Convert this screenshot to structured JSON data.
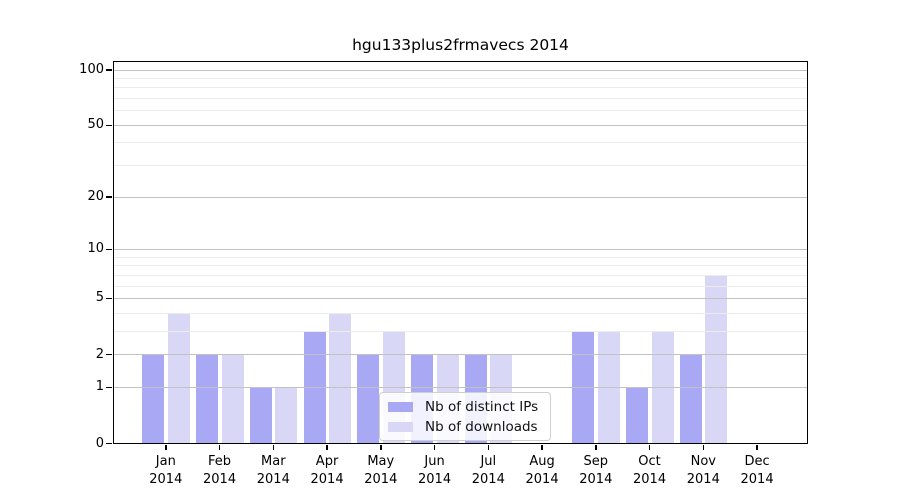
{
  "title": "hgu133plus2frmavecs 2014",
  "chart_data": {
    "type": "bar",
    "title": "hgu133plus2frmavecs 2014",
    "categories": [
      "Jan 2014",
      "Feb 2014",
      "Mar 2014",
      "Apr 2014",
      "May 2014",
      "Jun 2014",
      "Jul 2014",
      "Aug 2014",
      "Sep 2014",
      "Oct 2014",
      "Nov 2014",
      "Dec 2014"
    ],
    "series": [
      {
        "name": "Nb of distinct IPs",
        "color": "#a8a8f4",
        "values": [
          2,
          2,
          1,
          3,
          2,
          2,
          2,
          0,
          3,
          1,
          2,
          0
        ]
      },
      {
        "name": "Nb of downloads",
        "color": "#d8d8f6",
        "values": [
          4,
          2,
          1,
          4,
          3,
          2,
          2,
          0,
          3,
          3,
          7,
          0
        ]
      }
    ],
    "yscale": "log1p",
    "ylim": [
      0,
      116
    ],
    "yticks": [
      0,
      1,
      2,
      5,
      10,
      20,
      50,
      100
    ],
    "minor_yticks": [
      3,
      4,
      6,
      7,
      8,
      9,
      30,
      40,
      60,
      70,
      80,
      90
    ],
    "grid": true,
    "legend_position": "lower center",
    "colors": {
      "major_grid": "#c2c2c2",
      "minor_grid": "#ececec",
      "axis": "#000000",
      "background": "#ffffff"
    }
  }
}
